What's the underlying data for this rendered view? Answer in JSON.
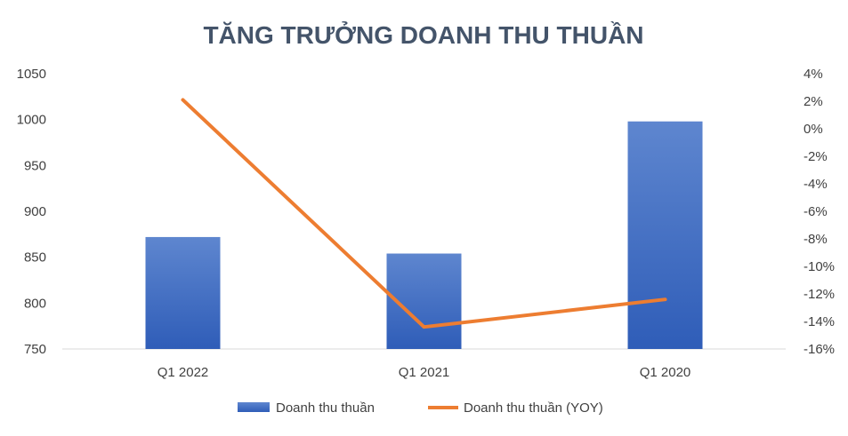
{
  "chart_data": {
    "type": "bar",
    "title": "TĂNG TRƯỞNG DOANH THU THUẦN",
    "categories": [
      "Q1 2022",
      "Q1 2021",
      "Q1 2020"
    ],
    "series": [
      {
        "name": "Doanh thu thuần",
        "type": "bar",
        "axis": "left",
        "values": [
          872,
          854,
          998
        ],
        "color": "#4472C4"
      },
      {
        "name": "Doanh thu thuần (YOY)",
        "type": "line",
        "axis": "right",
        "values": [
          2.1,
          -14.4,
          -12.4
        ],
        "color": "#ED7D31"
      }
    ],
    "y_left": {
      "min": 750,
      "max": 1050,
      "ticks": [
        750,
        800,
        850,
        900,
        950,
        1000,
        1050
      ],
      "tick_labels": [
        "750",
        "800",
        "850",
        "900",
        "950",
        "1000",
        "1050"
      ]
    },
    "y_right": {
      "min": -16,
      "max": 4,
      "ticks": [
        4,
        2,
        0,
        -2,
        -4,
        -6,
        -8,
        -10,
        -12,
        -14,
        -16
      ],
      "tick_labels": [
        "4%",
        "2%",
        "0%",
        "-2%",
        "-4%",
        "-6%",
        "-8%",
        "-10%",
        "-12%",
        "-14%",
        "-16%"
      ]
    },
    "grid": false,
    "legend": "bottom",
    "xlabel": "",
    "ylabel": ""
  }
}
